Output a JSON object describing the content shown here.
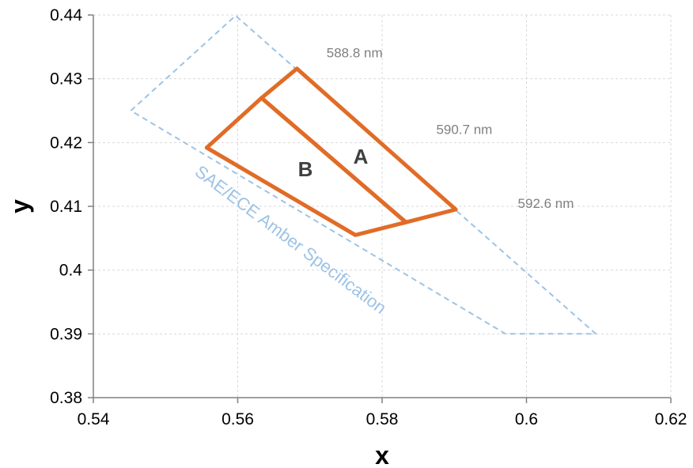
{
  "chart_data": {
    "type": "scatter",
    "title": "",
    "xlabel": "x",
    "ylabel": "y",
    "xlim": [
      0.54,
      0.62
    ],
    "ylim": [
      0.38,
      0.44
    ],
    "xticks": [
      0.54,
      0.56,
      0.58,
      0.6,
      0.62
    ],
    "xtick_labels": [
      "0.54",
      "0.56",
      "0.58",
      "0.6",
      "0.62"
    ],
    "yticks": [
      0.38,
      0.39,
      0.4,
      0.41,
      0.42,
      0.43,
      0.44
    ],
    "ytick_labels": [
      "0.38",
      "0.39",
      "0.4",
      "0.41",
      "0.42",
      "0.43",
      "0.44"
    ],
    "grid": true,
    "legend": "none",
    "series": [
      {
        "label": "SAE/ECE Amber Specification",
        "color": "#9dc3e6",
        "style": "dashed",
        "closed": true,
        "points": [
          [
            0.5452,
            0.425
          ],
          [
            0.5597,
            0.4399
          ],
          [
            0.6096,
            0.39
          ],
          [
            0.5971,
            0.39
          ]
        ]
      },
      {
        "label": "A",
        "color": "#e06c27",
        "style": "solid",
        "closed": true,
        "points": [
          [
            0.5633,
            0.427
          ],
          [
            0.5682,
            0.4316
          ],
          [
            0.5902,
            0.4095
          ],
          [
            0.5833,
            0.4075
          ]
        ]
      },
      {
        "label": "B",
        "color": "#e06c27",
        "style": "solid",
        "closed": true,
        "points": [
          [
            0.5557,
            0.4192
          ],
          [
            0.5633,
            0.427
          ],
          [
            0.5833,
            0.4075
          ],
          [
            0.5763,
            0.4055
          ]
        ]
      }
    ],
    "annotations": [
      {
        "text": "588.8 nm",
        "x": 0.5723,
        "y": 0.4341
      },
      {
        "text": "590.7 nm",
        "x": 0.5875,
        "y": 0.4221
      },
      {
        "text": "592.6 nm",
        "x": 0.5988,
        "y": 0.4105
      }
    ]
  }
}
